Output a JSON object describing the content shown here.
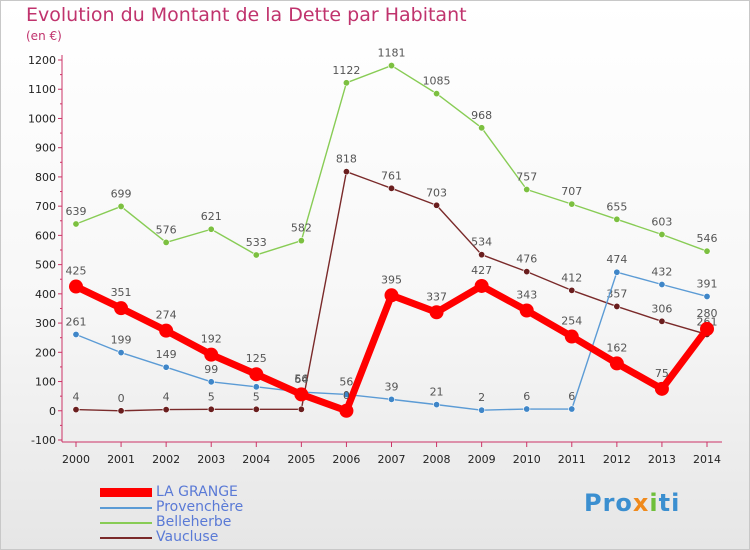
{
  "title": "Evolution du Montant de la Dette par Habitant",
  "unit": "(en €)",
  "logo": {
    "parts": [
      "Pro",
      "x",
      "i",
      "ti"
    ],
    "colors": [
      "#3b8fd0",
      "#f08a1c",
      "#6fbf3a",
      "#3b8fd0"
    ]
  },
  "chart_data": {
    "type": "line",
    "title": "Evolution du Montant de la Dette par Habitant",
    "ylabel": "(en €)",
    "xlabel": "",
    "x": [
      2000,
      2001,
      2002,
      2003,
      2004,
      2005,
      2006,
      2007,
      2008,
      2009,
      2010,
      2011,
      2012,
      2013,
      2014
    ],
    "ylim": [
      -100,
      1200
    ],
    "yticks": [
      -100,
      0,
      100,
      200,
      300,
      400,
      500,
      600,
      700,
      800,
      900,
      1000,
      1100,
      1200
    ],
    "grid": false,
    "legend": "bottom-left",
    "series": [
      {
        "name": "Belleherbe",
        "color": "#88cc55",
        "marker": "#7cc040",
        "width": 1.4,
        "values": [
          639,
          699,
          576,
          621,
          533,
          582,
          1122,
          1181,
          1085,
          968,
          757,
          707,
          655,
          603,
          546
        ]
      },
      {
        "name": "Vaucluse",
        "color": "#7a2a2a",
        "marker": "#6a1e1e",
        "width": 1.4,
        "values": [
          4,
          0,
          4,
          5,
          5,
          5,
          818,
          761,
          703,
          534,
          476,
          412,
          357,
          306,
          261
        ]
      },
      {
        "name": "Provenchère",
        "color": "#5b9bd5",
        "marker": "#3f86c8",
        "width": 1.4,
        "values": [
          261,
          199,
          149,
          99,
          82,
          64,
          56,
          39,
          21,
          2,
          6,
          6,
          474,
          432,
          391
        ]
      },
      {
        "name": "LA GRANGE",
        "color": "#ff0000",
        "marker": "#ff0000",
        "width": 7,
        "values": [
          425,
          351,
          274,
          192,
          125,
          56,
          0,
          395,
          337,
          427,
          343,
          254,
          162,
          75,
          280
        ]
      }
    ],
    "legend_order": [
      "LA GRANGE",
      "Provenchère",
      "Belleherbe",
      "Vaucluse"
    ]
  }
}
